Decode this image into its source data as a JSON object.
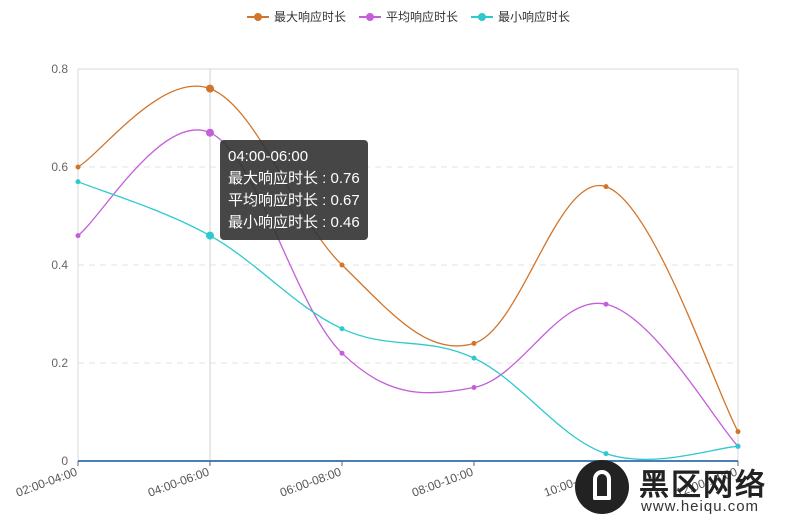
{
  "chart_data": {
    "type": "line",
    "categories": [
      "02:00-04:00",
      "04:00-06:00",
      "06:00-08:00",
      "08:00-10:00",
      "10:00-12:00",
      "12:00-14:00"
    ],
    "series": [
      {
        "name": "最大响应时长",
        "color": "#d2752a",
        "values": [
          0.6,
          0.76,
          0.4,
          0.24,
          0.56,
          0.06
        ]
      },
      {
        "name": "平均响应时长",
        "color": "#c45ed9",
        "values": [
          0.46,
          0.67,
          0.22,
          0.15,
          0.32,
          0.03
        ]
      },
      {
        "name": "最小响应时长",
        "color": "#2ec9cf",
        "values": [
          0.57,
          0.46,
          0.27,
          0.21,
          0.015,
          0.03
        ]
      }
    ],
    "ylim": [
      0,
      0.8
    ],
    "yticks": [
      "0",
      "0.2",
      "0.4",
      "0.6",
      "0.8"
    ],
    "legend_position": "top-center",
    "grid": true
  },
  "tooltip": {
    "title": "04:00-06:00",
    "rows": [
      "最大响应时长 : 0.76",
      "平均响应时长 : 0.67",
      "最小响应时长 : 0.46"
    ]
  },
  "watermark": {
    "title": "黑区网络",
    "url": "www.heiqu.com"
  }
}
